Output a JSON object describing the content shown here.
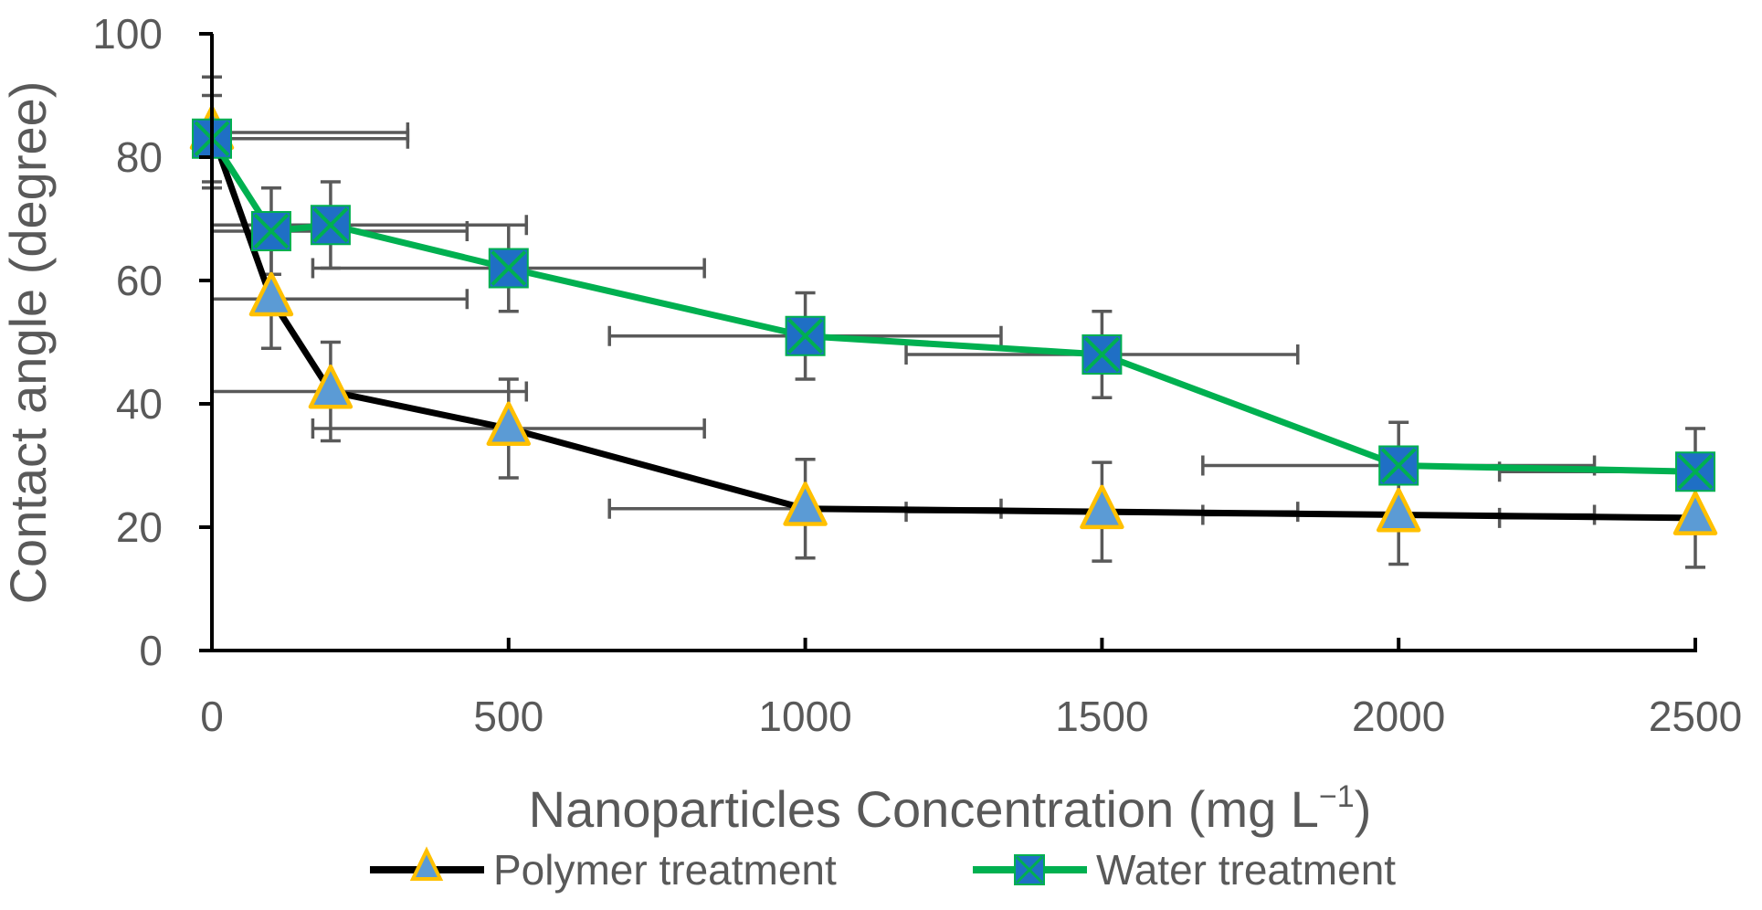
{
  "chart_data": {
    "type": "line",
    "title": "",
    "xlabel": "Nanoparticles Concentration (mg L",
    "xlabel_sup": "−1",
    "xlabel_end": ")",
    "ylabel": "Contact angle (degree)",
    "xlim": [
      0,
      2500
    ],
    "ylim": [
      0,
      100
    ],
    "xticks": [
      "0",
      "500",
      "1000",
      "1500",
      "2000",
      "2500"
    ],
    "xtick_values": [
      0,
      500,
      1000,
      1500,
      2000,
      2500
    ],
    "yticks": [
      "0",
      "20",
      "40",
      "60",
      "80",
      "100"
    ],
    "ytick_values": [
      0,
      20,
      40,
      60,
      80,
      100
    ],
    "grid": false,
    "legend_position": "bottom",
    "series": [
      {
        "name": "Polymer treatment",
        "line_color": "#000000",
        "marker": "triangle",
        "marker_fill": "#5B9BD5",
        "marker_edge": "#FFC000",
        "x": [
          0,
          100,
          200,
          500,
          1000,
          1500,
          2000,
          2500
        ],
        "y": [
          84,
          57,
          42,
          36,
          23,
          22.5,
          22,
          21.5
        ],
        "y_err": [
          9,
          8,
          8,
          8,
          8,
          8,
          8,
          8
        ],
        "x_err": [
          330,
          330,
          330,
          330,
          330,
          330,
          330,
          330
        ]
      },
      {
        "name": "Water treatment",
        "line_color": "#00B050",
        "marker": "square-x",
        "marker_fill": "#1F6FC5",
        "marker_edge": "#00B050",
        "x": [
          0,
          100,
          200,
          500,
          1000,
          1500,
          2000,
          2500
        ],
        "y": [
          83,
          68,
          69,
          62,
          51,
          48,
          30,
          29
        ],
        "y_err": [
          7,
          7,
          7,
          7,
          7,
          7,
          7,
          7
        ],
        "x_err": [
          330,
          330,
          330,
          330,
          330,
          330,
          330,
          330
        ]
      }
    ]
  }
}
